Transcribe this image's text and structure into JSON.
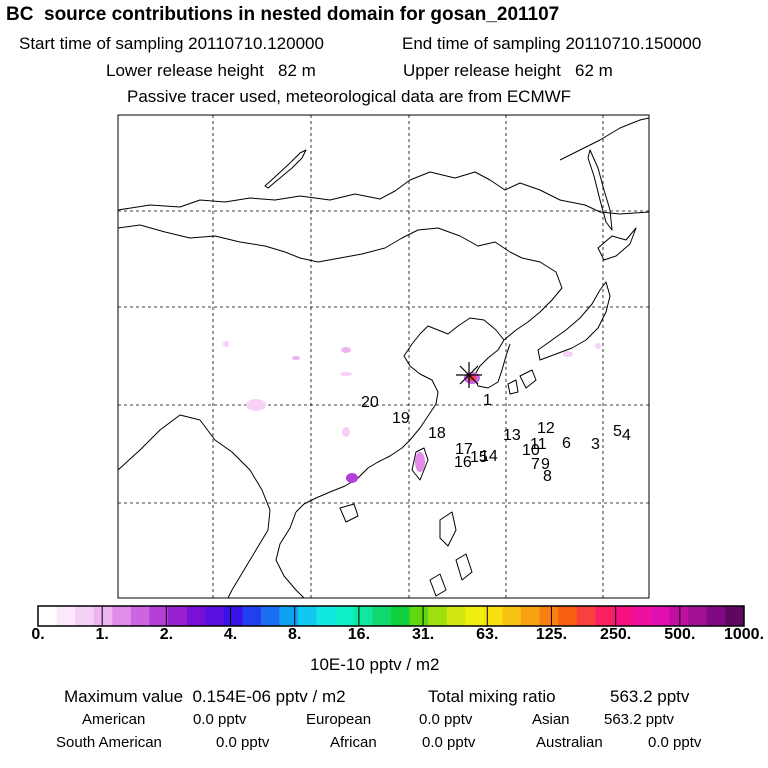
{
  "header": {
    "title": "BC  source contributions in nested domain for gosan_201107",
    "start_label": "Start time of sampling 20110710.120000",
    "end_label": "End time of sampling 20110710.150000",
    "lower_label": "Lower release height   82 m",
    "upper_label": "Upper release height   62 m",
    "note": "Passive tracer used, meteorological data are from ECMWF"
  },
  "map": {
    "receptor_marker": "star-cross",
    "trajectory_labels": [
      "1",
      "3",
      "4",
      "5",
      "6",
      "7",
      "8",
      "9",
      "10",
      "11",
      "12",
      "13",
      "14",
      "15",
      "16",
      "17",
      "18",
      "19",
      "20"
    ]
  },
  "colorbar": {
    "colors": [
      "#ffffff",
      "#fbe8fb",
      "#f5d0f7",
      "#eeb4f2",
      "#e08ce8",
      "#cc66e0",
      "#b43ed8",
      "#9820d0",
      "#7a10d8",
      "#5a10e0",
      "#3a10e8",
      "#2040f0",
      "#1a70f0",
      "#10a0f0",
      "#10c8f0",
      "#10e8e0",
      "#10f0c8",
      "#10e8a0",
      "#10d870",
      "#10d040",
      "#60d810",
      "#a0e010",
      "#d0e810",
      "#f0f010",
      "#f8e010",
      "#f8c010",
      "#f8a010",
      "#f88010",
      "#f86010",
      "#f84040",
      "#f82060",
      "#f81080",
      "#f010a0",
      "#e010b0",
      "#c010a0",
      "#a01090",
      "#800880",
      "#600860"
    ],
    "ticks": [
      "0.",
      "1.",
      "2.",
      "4.",
      "8.",
      "16.",
      "31.",
      "63.",
      "125.",
      "250.",
      "500.",
      "1000."
    ],
    "unit_label": "10E-10 pptv / m2"
  },
  "footer": {
    "max_label": "Maximum value  0.154E-06 pptv / m2",
    "total_label": "Total mixing ratio",
    "total_value": "563.2 pptv",
    "regions": [
      {
        "name": "American",
        "value": "0.0 pptv"
      },
      {
        "name": "European",
        "value": "0.0 pptv"
      },
      {
        "name": "Asian",
        "value": "563.2 pptv"
      },
      {
        "name": "South American",
        "value": "0.0 pptv"
      },
      {
        "name": "African",
        "value": "0.0 pptv"
      },
      {
        "name": "Australian",
        "value": "0.0 pptv"
      }
    ]
  }
}
